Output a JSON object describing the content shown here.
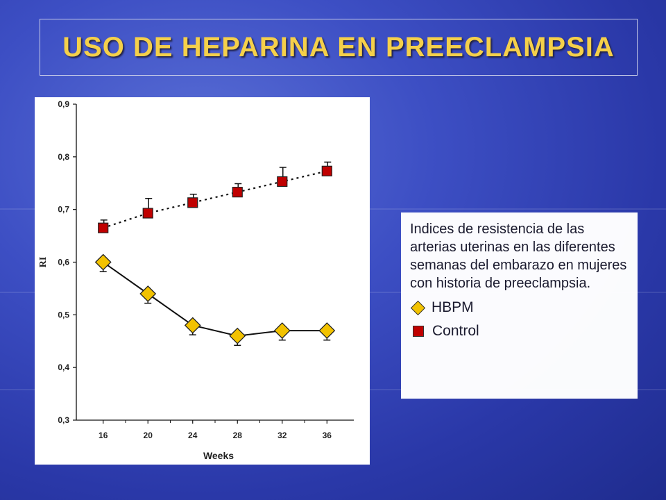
{
  "title": "USO DE HEPARINA EN PREECLAMPSIA",
  "legend": {
    "description": "Indices de resistencia de las arterias uterinas en las diferentes semanas del embarazo en mujeres con historia de preeclampsia.",
    "items": [
      {
        "label": "HBPM",
        "marker": "diamond",
        "color": "#f2c200"
      },
      {
        "label": "Control",
        "marker": "square",
        "color": "#c00000"
      }
    ]
  },
  "chart_data": {
    "type": "line",
    "xlabel": "Weeks",
    "ylabel": "RI",
    "x": [
      16,
      20,
      24,
      28,
      32,
      36
    ],
    "x_tick_labels": [
      "16",
      "20",
      "24",
      "28",
      "32",
      "36"
    ],
    "ylim": [
      0.3,
      0.9
    ],
    "y_ticks": [
      0.3,
      0.4,
      0.5,
      0.6,
      0.7,
      0.8,
      0.9
    ],
    "y_tick_labels": [
      "0,3",
      "0,4",
      "0,5",
      "0,6",
      "0,7",
      "0,8",
      "0,9"
    ],
    "grid": false,
    "series": [
      {
        "name": "Control",
        "marker": "square",
        "color": "#c00000",
        "line_style": "dotted",
        "values": [
          0.665,
          0.693,
          0.713,
          0.733,
          0.753,
          0.773
        ],
        "error_upper": [
          0.015,
          0.028,
          0.016,
          0.016,
          0.027,
          0.017
        ]
      },
      {
        "name": "HBPM",
        "marker": "diamond",
        "color": "#f2c200",
        "line_style": "solid",
        "values": [
          0.6,
          0.54,
          0.48,
          0.46,
          0.47,
          0.47
        ],
        "error_lower": [
          0.018,
          0.018,
          0.018,
          0.018,
          0.018,
          0.018
        ]
      }
    ]
  }
}
